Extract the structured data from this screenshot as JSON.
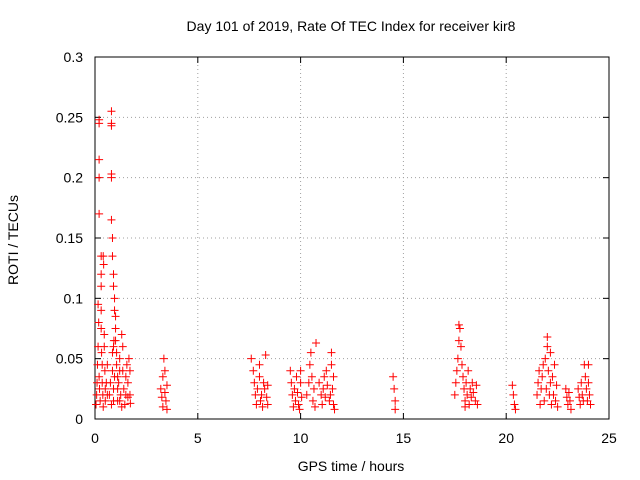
{
  "chart_data": {
    "type": "scatter",
    "title": "Day 101 of 2019, Rate Of TEC Index for receiver kir8",
    "xlabel": "GPS time / hours",
    "ylabel": "ROTI / TECUs",
    "xlim": [
      0,
      25
    ],
    "ylim": [
      0,
      0.3
    ],
    "xticks": [
      0,
      5,
      10,
      15,
      20,
      25
    ],
    "xtick_labels": [
      "0",
      "5",
      "10",
      "15",
      "20",
      "25"
    ],
    "yticks": [
      0,
      0.05,
      0.1,
      0.15,
      0.2,
      0.25,
      0.3
    ],
    "ytick_labels": [
      "0",
      "0.05",
      "0.1",
      "0.15",
      "0.2",
      "0.25",
      "0.3"
    ],
    "grid": true,
    "marker": "+",
    "color": "#ff0000",
    "series": [
      {
        "name": "ROTI",
        "points": [
          [
            0.05,
            0.012
          ],
          [
            0.08,
            0.02
          ],
          [
            0.1,
            0.03
          ],
          [
            0.12,
            0.045
          ],
          [
            0.15,
            0.06
          ],
          [
            0.15,
            0.095
          ],
          [
            0.18,
            0.08
          ],
          [
            0.2,
            0.035
          ],
          [
            0.22,
            0.025
          ],
          [
            0.25,
            0.015
          ],
          [
            0.2,
            0.215
          ],
          [
            0.2,
            0.2
          ],
          [
            0.2,
            0.17
          ],
          [
            0.2,
            0.248
          ],
          [
            0.2,
            0.245
          ],
          [
            0.3,
            0.135
          ],
          [
            0.3,
            0.12
          ],
          [
            0.3,
            0.11
          ],
          [
            0.3,
            0.09
          ],
          [
            0.3,
            0.075
          ],
          [
            0.32,
            0.055
          ],
          [
            0.35,
            0.045
          ],
          [
            0.35,
            0.03
          ],
          [
            0.38,
            0.02
          ],
          [
            0.4,
            0.01
          ],
          [
            0.4,
            0.135
          ],
          [
            0.42,
            0.128
          ],
          [
            0.45,
            0.07
          ],
          [
            0.45,
            0.06
          ],
          [
            0.48,
            0.04
          ],
          [
            0.5,
            0.025
          ],
          [
            0.5,
            0.015
          ],
          [
            0.55,
            0.03
          ],
          [
            0.6,
            0.02
          ],
          [
            0.6,
            0.045
          ],
          [
            0.7,
            0.02
          ],
          [
            0.75,
            0.03
          ],
          [
            0.8,
            0.012
          ],
          [
            0.85,
            0.04
          ],
          [
            0.85,
            0.055
          ],
          [
            0.9,
            0.015
          ],
          [
            0.9,
            0.025
          ],
          [
            0.9,
            0.06
          ],
          [
            0.92,
            0.065
          ],
          [
            0.95,
            0.035
          ],
          [
            0.8,
            0.255
          ],
          [
            0.8,
            0.245
          ],
          [
            0.8,
            0.243
          ],
          [
            0.8,
            0.2
          ],
          [
            0.8,
            0.203
          ],
          [
            0.8,
            0.165
          ],
          [
            0.85,
            0.15
          ],
          [
            0.85,
            0.135
          ],
          [
            0.9,
            0.12
          ],
          [
            0.9,
            0.11
          ],
          [
            0.95,
            0.1
          ],
          [
            0.95,
            0.09
          ],
          [
            1.0,
            0.085
          ],
          [
            1.0,
            0.075
          ],
          [
            1.0,
            0.065
          ],
          [
            1.05,
            0.055
          ],
          [
            1.05,
            0.045
          ],
          [
            1.1,
            0.035
          ],
          [
            1.1,
            0.025
          ],
          [
            1.1,
            0.015
          ],
          [
            1.15,
            0.03
          ],
          [
            1.2,
            0.04
          ],
          [
            1.2,
            0.05
          ],
          [
            1.2,
            0.015
          ],
          [
            1.25,
            0.02
          ],
          [
            1.3,
            0.01
          ],
          [
            1.3,
            0.07
          ],
          [
            1.35,
            0.06
          ],
          [
            1.35,
            0.04
          ],
          [
            1.4,
            0.025
          ],
          [
            1.45,
            0.012
          ],
          [
            1.5,
            0.02
          ],
          [
            1.5,
            0.035
          ],
          [
            1.55,
            0.045
          ],
          [
            1.6,
            0.03
          ],
          [
            1.6,
            0.018
          ],
          [
            1.65,
            0.05
          ],
          [
            1.7,
            0.04
          ],
          [
            1.7,
            0.02
          ],
          [
            1.72,
            0.013
          ],
          [
            3.2,
            0.025
          ],
          [
            3.25,
            0.018
          ],
          [
            3.3,
            0.01
          ],
          [
            3.3,
            0.035
          ],
          [
            3.35,
            0.05
          ],
          [
            3.4,
            0.04
          ],
          [
            3.4,
            0.022
          ],
          [
            3.45,
            0.015
          ],
          [
            3.5,
            0.028
          ],
          [
            3.5,
            0.008
          ],
          [
            7.6,
            0.05
          ],
          [
            7.7,
            0.04
          ],
          [
            7.75,
            0.03
          ],
          [
            7.8,
            0.02
          ],
          [
            7.85,
            0.012
          ],
          [
            7.9,
            0.025
          ],
          [
            8.0,
            0.045
          ],
          [
            8.0,
            0.035
          ],
          [
            8.05,
            0.015
          ],
          [
            8.1,
            0.02
          ],
          [
            8.15,
            0.01
          ],
          [
            8.2,
            0.03
          ],
          [
            8.25,
            0.025
          ],
          [
            8.3,
            0.053
          ],
          [
            8.35,
            0.018
          ],
          [
            8.4,
            0.028
          ],
          [
            8.4,
            0.012
          ],
          [
            9.5,
            0.04
          ],
          [
            9.55,
            0.03
          ],
          [
            9.6,
            0.02
          ],
          [
            9.65,
            0.01
          ],
          [
            9.7,
            0.025
          ],
          [
            9.75,
            0.015
          ],
          [
            9.8,
            0.035
          ],
          [
            9.85,
            0.022
          ],
          [
            9.9,
            0.012
          ],
          [
            9.95,
            0.008
          ],
          [
            10.0,
            0.04
          ],
          [
            10.0,
            0.03
          ],
          [
            10.05,
            0.018
          ],
          [
            10.3,
            0.02
          ],
          [
            10.4,
            0.03
          ],
          [
            10.45,
            0.045
          ],
          [
            10.5,
            0.055
          ],
          [
            10.55,
            0.035
          ],
          [
            10.6,
            0.015
          ],
          [
            10.65,
            0.025
          ],
          [
            10.7,
            0.01
          ],
          [
            10.75,
            0.063
          ],
          [
            10.9,
            0.03
          ],
          [
            11.0,
            0.02
          ],
          [
            11.05,
            0.012
          ],
          [
            11.1,
            0.025
          ],
          [
            11.15,
            0.035
          ],
          [
            11.2,
            0.018
          ],
          [
            11.25,
            0.04
          ],
          [
            11.3,
            0.028
          ],
          [
            11.4,
            0.015
          ],
          [
            11.45,
            0.02
          ],
          [
            11.5,
            0.055
          ],
          [
            11.5,
            0.045
          ],
          [
            11.55,
            0.025
          ],
          [
            11.6,
            0.012
          ],
          [
            11.6,
            0.035
          ],
          [
            11.65,
            0.008
          ],
          [
            14.5,
            0.035
          ],
          [
            14.55,
            0.025
          ],
          [
            14.6,
            0.015
          ],
          [
            14.6,
            0.008
          ],
          [
            17.5,
            0.02
          ],
          [
            17.55,
            0.03
          ],
          [
            17.6,
            0.04
          ],
          [
            17.65,
            0.05
          ],
          [
            17.7,
            0.065
          ],
          [
            17.7,
            0.078
          ],
          [
            17.75,
            0.075
          ],
          [
            17.8,
            0.06
          ],
          [
            17.85,
            0.045
          ],
          [
            17.9,
            0.035
          ],
          [
            17.95,
            0.025
          ],
          [
            18.0,
            0.015
          ],
          [
            18.0,
            0.01
          ],
          [
            18.05,
            0.03
          ],
          [
            18.1,
            0.02
          ],
          [
            18.15,
            0.04
          ],
          [
            18.2,
            0.012
          ],
          [
            18.25,
            0.025
          ],
          [
            18.3,
            0.018
          ],
          [
            18.35,
            0.03
          ],
          [
            18.4,
            0.022
          ],
          [
            18.5,
            0.015
          ],
          [
            18.55,
            0.028
          ],
          [
            18.6,
            0.012
          ],
          [
            20.3,
            0.028
          ],
          [
            20.35,
            0.02
          ],
          [
            20.4,
            0.012
          ],
          [
            20.45,
            0.008
          ],
          [
            21.5,
            0.02
          ],
          [
            21.55,
            0.03
          ],
          [
            21.6,
            0.04
          ],
          [
            21.65,
            0.012
          ],
          [
            21.7,
            0.025
          ],
          [
            21.75,
            0.035
          ],
          [
            21.8,
            0.045
          ],
          [
            21.85,
            0.015
          ],
          [
            21.9,
            0.05
          ],
          [
            21.95,
            0.025
          ],
          [
            22.0,
            0.068
          ],
          [
            22.0,
            0.06
          ],
          [
            22.05,
            0.04
          ],
          [
            22.1,
            0.02
          ],
          [
            22.15,
            0.055
          ],
          [
            22.15,
            0.03
          ],
          [
            22.2,
            0.012
          ],
          [
            22.25,
            0.035
          ],
          [
            22.3,
            0.02
          ],
          [
            22.35,
            0.045
          ],
          [
            22.4,
            0.015
          ],
          [
            22.45,
            0.028
          ],
          [
            22.5,
            0.01
          ],
          [
            22.9,
            0.025
          ],
          [
            22.95,
            0.018
          ],
          [
            23.0,
            0.012
          ],
          [
            23.05,
            0.022
          ],
          [
            23.1,
            0.015
          ],
          [
            23.15,
            0.008
          ],
          [
            23.5,
            0.025
          ],
          [
            23.55,
            0.018
          ],
          [
            23.6,
            0.012
          ],
          [
            23.65,
            0.03
          ],
          [
            23.7,
            0.02
          ],
          [
            23.75,
            0.015
          ],
          [
            23.8,
            0.045
          ],
          [
            23.85,
            0.035
          ],
          [
            23.9,
            0.025
          ],
          [
            23.95,
            0.015
          ],
          [
            24.0,
            0.045
          ],
          [
            24.0,
            0.03
          ],
          [
            24.05,
            0.02
          ],
          [
            24.1,
            0.012
          ]
        ]
      }
    ]
  }
}
